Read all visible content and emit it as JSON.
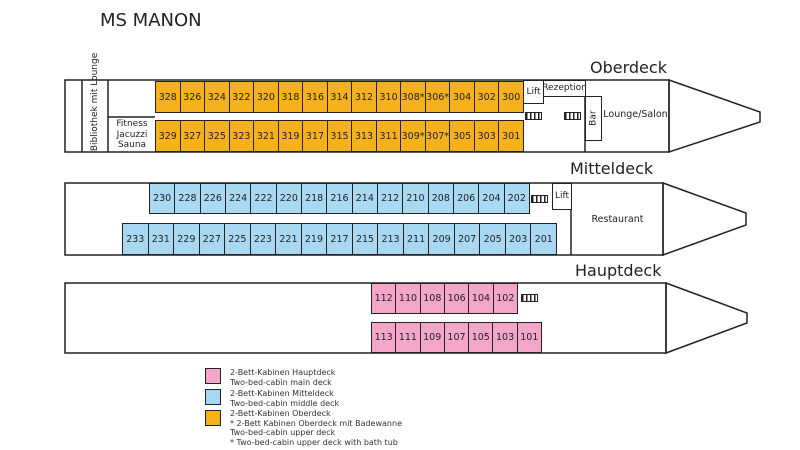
{
  "title": "MS MANON",
  "colors": {
    "upper": "#f5b21c",
    "middle": "#a9d8f2",
    "main": "#f3a6c8"
  },
  "oberdeck": {
    "label": "Oberdeck",
    "top_row": [
      "328",
      "326",
      "324",
      "322",
      "320",
      "318",
      "316",
      "314",
      "312",
      "310",
      "308*",
      "306*",
      "304",
      "302",
      "300"
    ],
    "bottom_row": [
      "329",
      "327",
      "325",
      "323",
      "321",
      "319",
      "317",
      "315",
      "313",
      "311",
      "309*",
      "307*",
      "305",
      "303",
      "301"
    ],
    "library": "Bibliothek mit Lounge",
    "fitness": "Fitness Jacuzzi Sauna",
    "lift": "Lift",
    "reception": "Rezeption",
    "bar": "Bar",
    "lounge": "Lounge/Salon"
  },
  "mitteldeck": {
    "label": "Mitteldeck",
    "top_row": [
      "230",
      "228",
      "226",
      "224",
      "222",
      "220",
      "218",
      "216",
      "214",
      "212",
      "210",
      "208",
      "206",
      "204",
      "202"
    ],
    "bottom_row": [
      "233",
      "231",
      "229",
      "227",
      "225",
      "223",
      "221",
      "219",
      "217",
      "215",
      "213",
      "211",
      "209",
      "207",
      "205",
      "203",
      "201"
    ],
    "lift": "Lift",
    "restaurant": "Restaurant"
  },
  "hauptdeck": {
    "label": "Hauptdeck",
    "top_row": [
      "112",
      "110",
      "108",
      "106",
      "104",
      "102"
    ],
    "bottom_row": [
      "113",
      "111",
      "109",
      "107",
      "105",
      "103",
      "101"
    ]
  },
  "legend": [
    {
      "color": "#f3a6c8",
      "lines": [
        "2-Bett-Kabinen Hauptdeck",
        "Two-bed-cabin main deck"
      ]
    },
    {
      "color": "#a9d8f2",
      "lines": [
        "2-Bett-Kabinen Mitteldeck",
        "Two-bed-cabin middle deck"
      ]
    },
    {
      "color": "#f5b21c",
      "lines": [
        "2-Bett-Kabinen Oberdeck",
        "* 2-Bett Kabinen Oberdeck mit Badewanne",
        "Two-bed-cabin upper deck",
        "* Two-bed-cabin upper deck with bath tub"
      ]
    }
  ]
}
